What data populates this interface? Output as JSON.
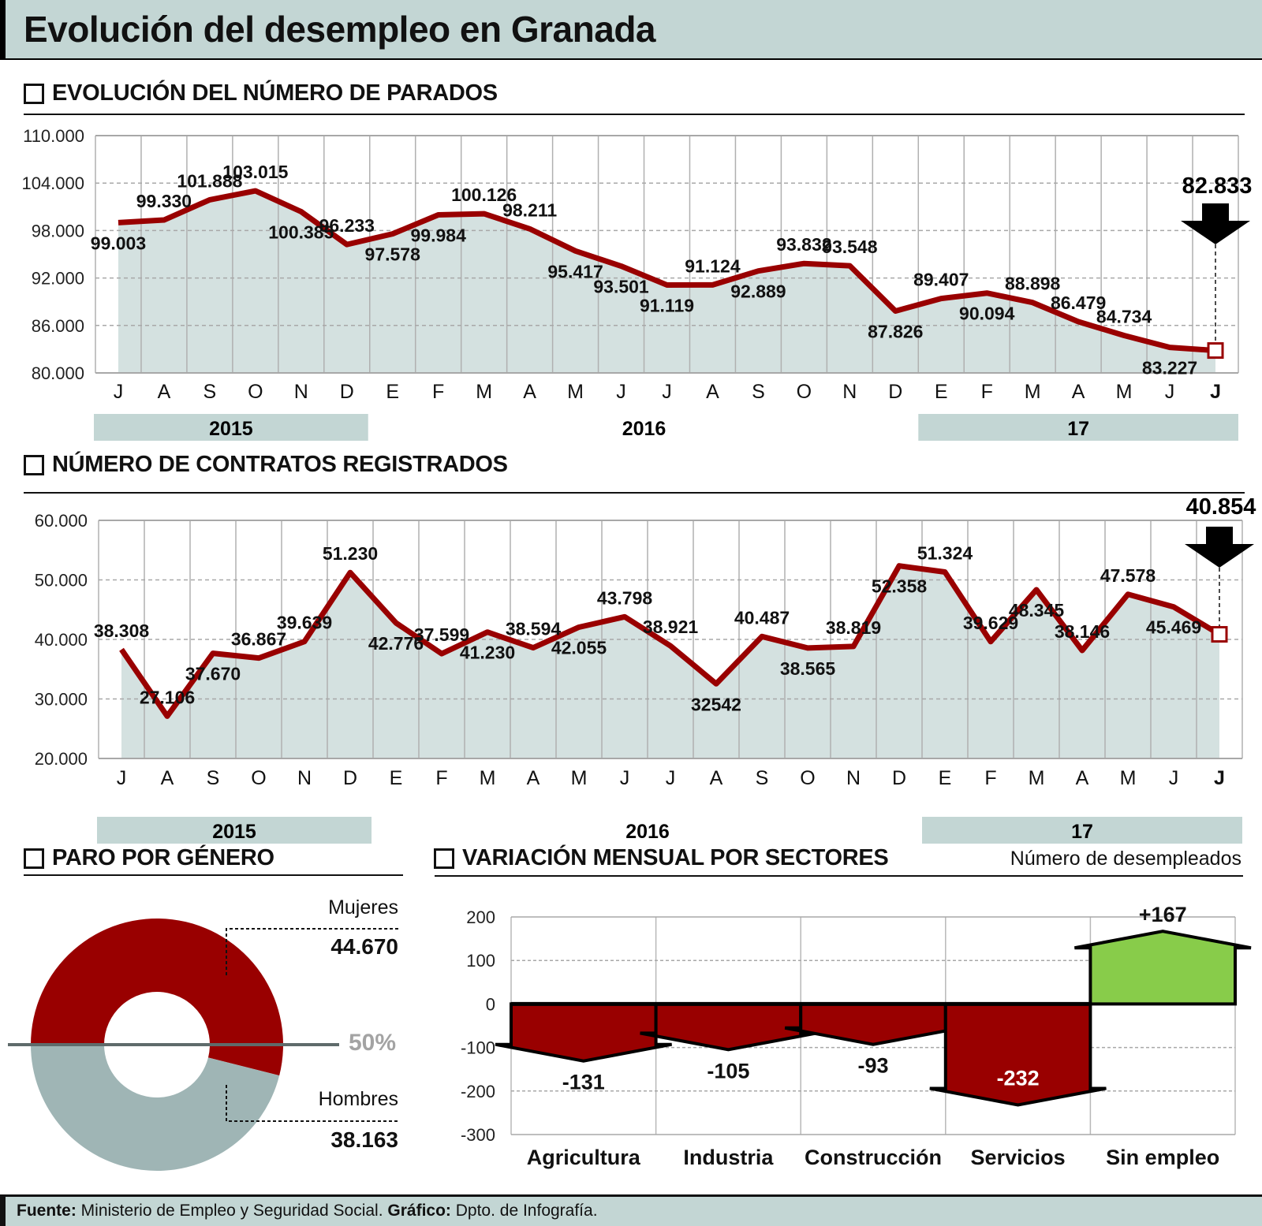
{
  "title": "Evolución del desempleo en Granada",
  "sections": {
    "parados": "EVOLUCIÓN DEL NÚMERO DE PARADOS",
    "contratos": "NÚMERO DE CONTRATOS REGISTRADOS",
    "genero": "PARO POR GÉNERO",
    "sectores": "VARIACIÓN MENSUAL POR SECTORES",
    "sectores_unit": "Número de desempleados"
  },
  "colors": {
    "line": "#990000",
    "area": "#d4e1e0",
    "band": "#c3d6d4",
    "mujeres": "#990000",
    "hombres": "#9fb5b5",
    "negative": "#990000",
    "positive": "#88cc4a"
  },
  "footer": {
    "source_label": "Fuente:",
    "source": "Ministerio de Empleo y Seguridad Social.",
    "graphic_label": "Gráfico:",
    "graphic": "Dpto. de Infografía."
  },
  "chart_data": [
    {
      "type": "line",
      "title": "EVOLUCIÓN DEL NÚMERO DE PARADOS",
      "categories": [
        "J",
        "A",
        "S",
        "O",
        "N",
        "D",
        "E",
        "F",
        "M",
        "A",
        "M",
        "J",
        "J",
        "A",
        "S",
        "O",
        "N",
        "D",
        "E",
        "F",
        "M",
        "A",
        "M",
        "J",
        "J"
      ],
      "years": [
        "2015",
        "2016",
        "17"
      ],
      "values": [
        99003,
        99330,
        101888,
        103015,
        100385,
        96233,
        97578,
        99984,
        100126,
        98211,
        95417,
        93501,
        91119,
        91124,
        92889,
        93832,
        93548,
        87826,
        89407,
        90094,
        88898,
        86479,
        84734,
        83227,
        82833
      ],
      "labels": [
        "99.003",
        "99.330",
        "101.888",
        "103.015",
        "100.385",
        "96.233",
        "97.578",
        "99.984",
        "100.126",
        "98.211",
        "95.417",
        "93.501",
        "91.119",
        "91.124",
        "92.889",
        "93.832",
        "93.548",
        "87.826",
        "89.407",
        "90.094",
        "88.898",
        "86.479",
        "84.734",
        "83.227",
        "82.833"
      ],
      "ylim": [
        80000,
        110000
      ],
      "yticks": [
        110000,
        104000,
        98000,
        92000,
        86000,
        80000
      ],
      "ytick_labels": [
        "110.000",
        "104.000",
        "98.000",
        "92.000",
        "86.000",
        "80.000"
      ],
      "highlight": "82.833",
      "grid": true
    },
    {
      "type": "line",
      "title": "NÚMERO DE CONTRATOS REGISTRADOS",
      "categories": [
        "J",
        "A",
        "S",
        "O",
        "N",
        "D",
        "E",
        "F",
        "M",
        "A",
        "M",
        "J",
        "J",
        "A",
        "S",
        "O",
        "N",
        "D",
        "E",
        "F",
        "M",
        "A",
        "M",
        "J",
        "J"
      ],
      "years": [
        "2015",
        "2016",
        "17"
      ],
      "values": [
        38308,
        27106,
        37670,
        36867,
        39639,
        51230,
        42776,
        37599,
        41230,
        38594,
        42055,
        43798,
        38921,
        32542,
        40487,
        38565,
        38819,
        52358,
        51324,
        39629,
        48345,
        38146,
        47578,
        45469,
        40854
      ],
      "labels": [
        "38.308",
        "27.106",
        "37.670",
        "36.867",
        "39.639",
        "51.230",
        "42.776",
        "37.599",
        "41.230",
        "38.594",
        "42.055",
        "43.798",
        "38.921",
        "32542",
        "40.487",
        "38.565",
        "38.819",
        "52.358",
        "51.324",
        "39.629",
        "48.345",
        "38.146",
        "47.578",
        "45.469",
        "40.854"
      ],
      "ylim": [
        20000,
        60000
      ],
      "yticks": [
        60000,
        50000,
        40000,
        30000,
        20000
      ],
      "ytick_labels": [
        "60.000",
        "50.000",
        "40.000",
        "30.000",
        "20.000"
      ],
      "highlight": "40.854",
      "grid": true
    },
    {
      "type": "pie",
      "title": "PARO POR GÉNERO",
      "slices": [
        {
          "name": "Mujeres",
          "value": 44670,
          "label": "44.670"
        },
        {
          "name": "Hombres",
          "value": 38163,
          "label": "38.163"
        }
      ],
      "reference_label": "50%"
    },
    {
      "type": "bar",
      "title": "VARIACIÓN MENSUAL POR SECTORES",
      "ylabel": "Número de desempleados",
      "categories": [
        "Agricultura",
        "Industria",
        "Construcción",
        "Servicios",
        "Sin empleo"
      ],
      "values": [
        -131,
        -105,
        -93,
        -232,
        167
      ],
      "value_labels": [
        "-131",
        "-105",
        "-93",
        "-232",
        "+167"
      ],
      "ylim": [
        -300,
        200
      ],
      "yticks": [
        200,
        100,
        0,
        -100,
        -200,
        -300
      ],
      "ytick_labels": [
        "200",
        "100",
        "0",
        "-100",
        "-200",
        "-300"
      ],
      "grid": true
    }
  ]
}
